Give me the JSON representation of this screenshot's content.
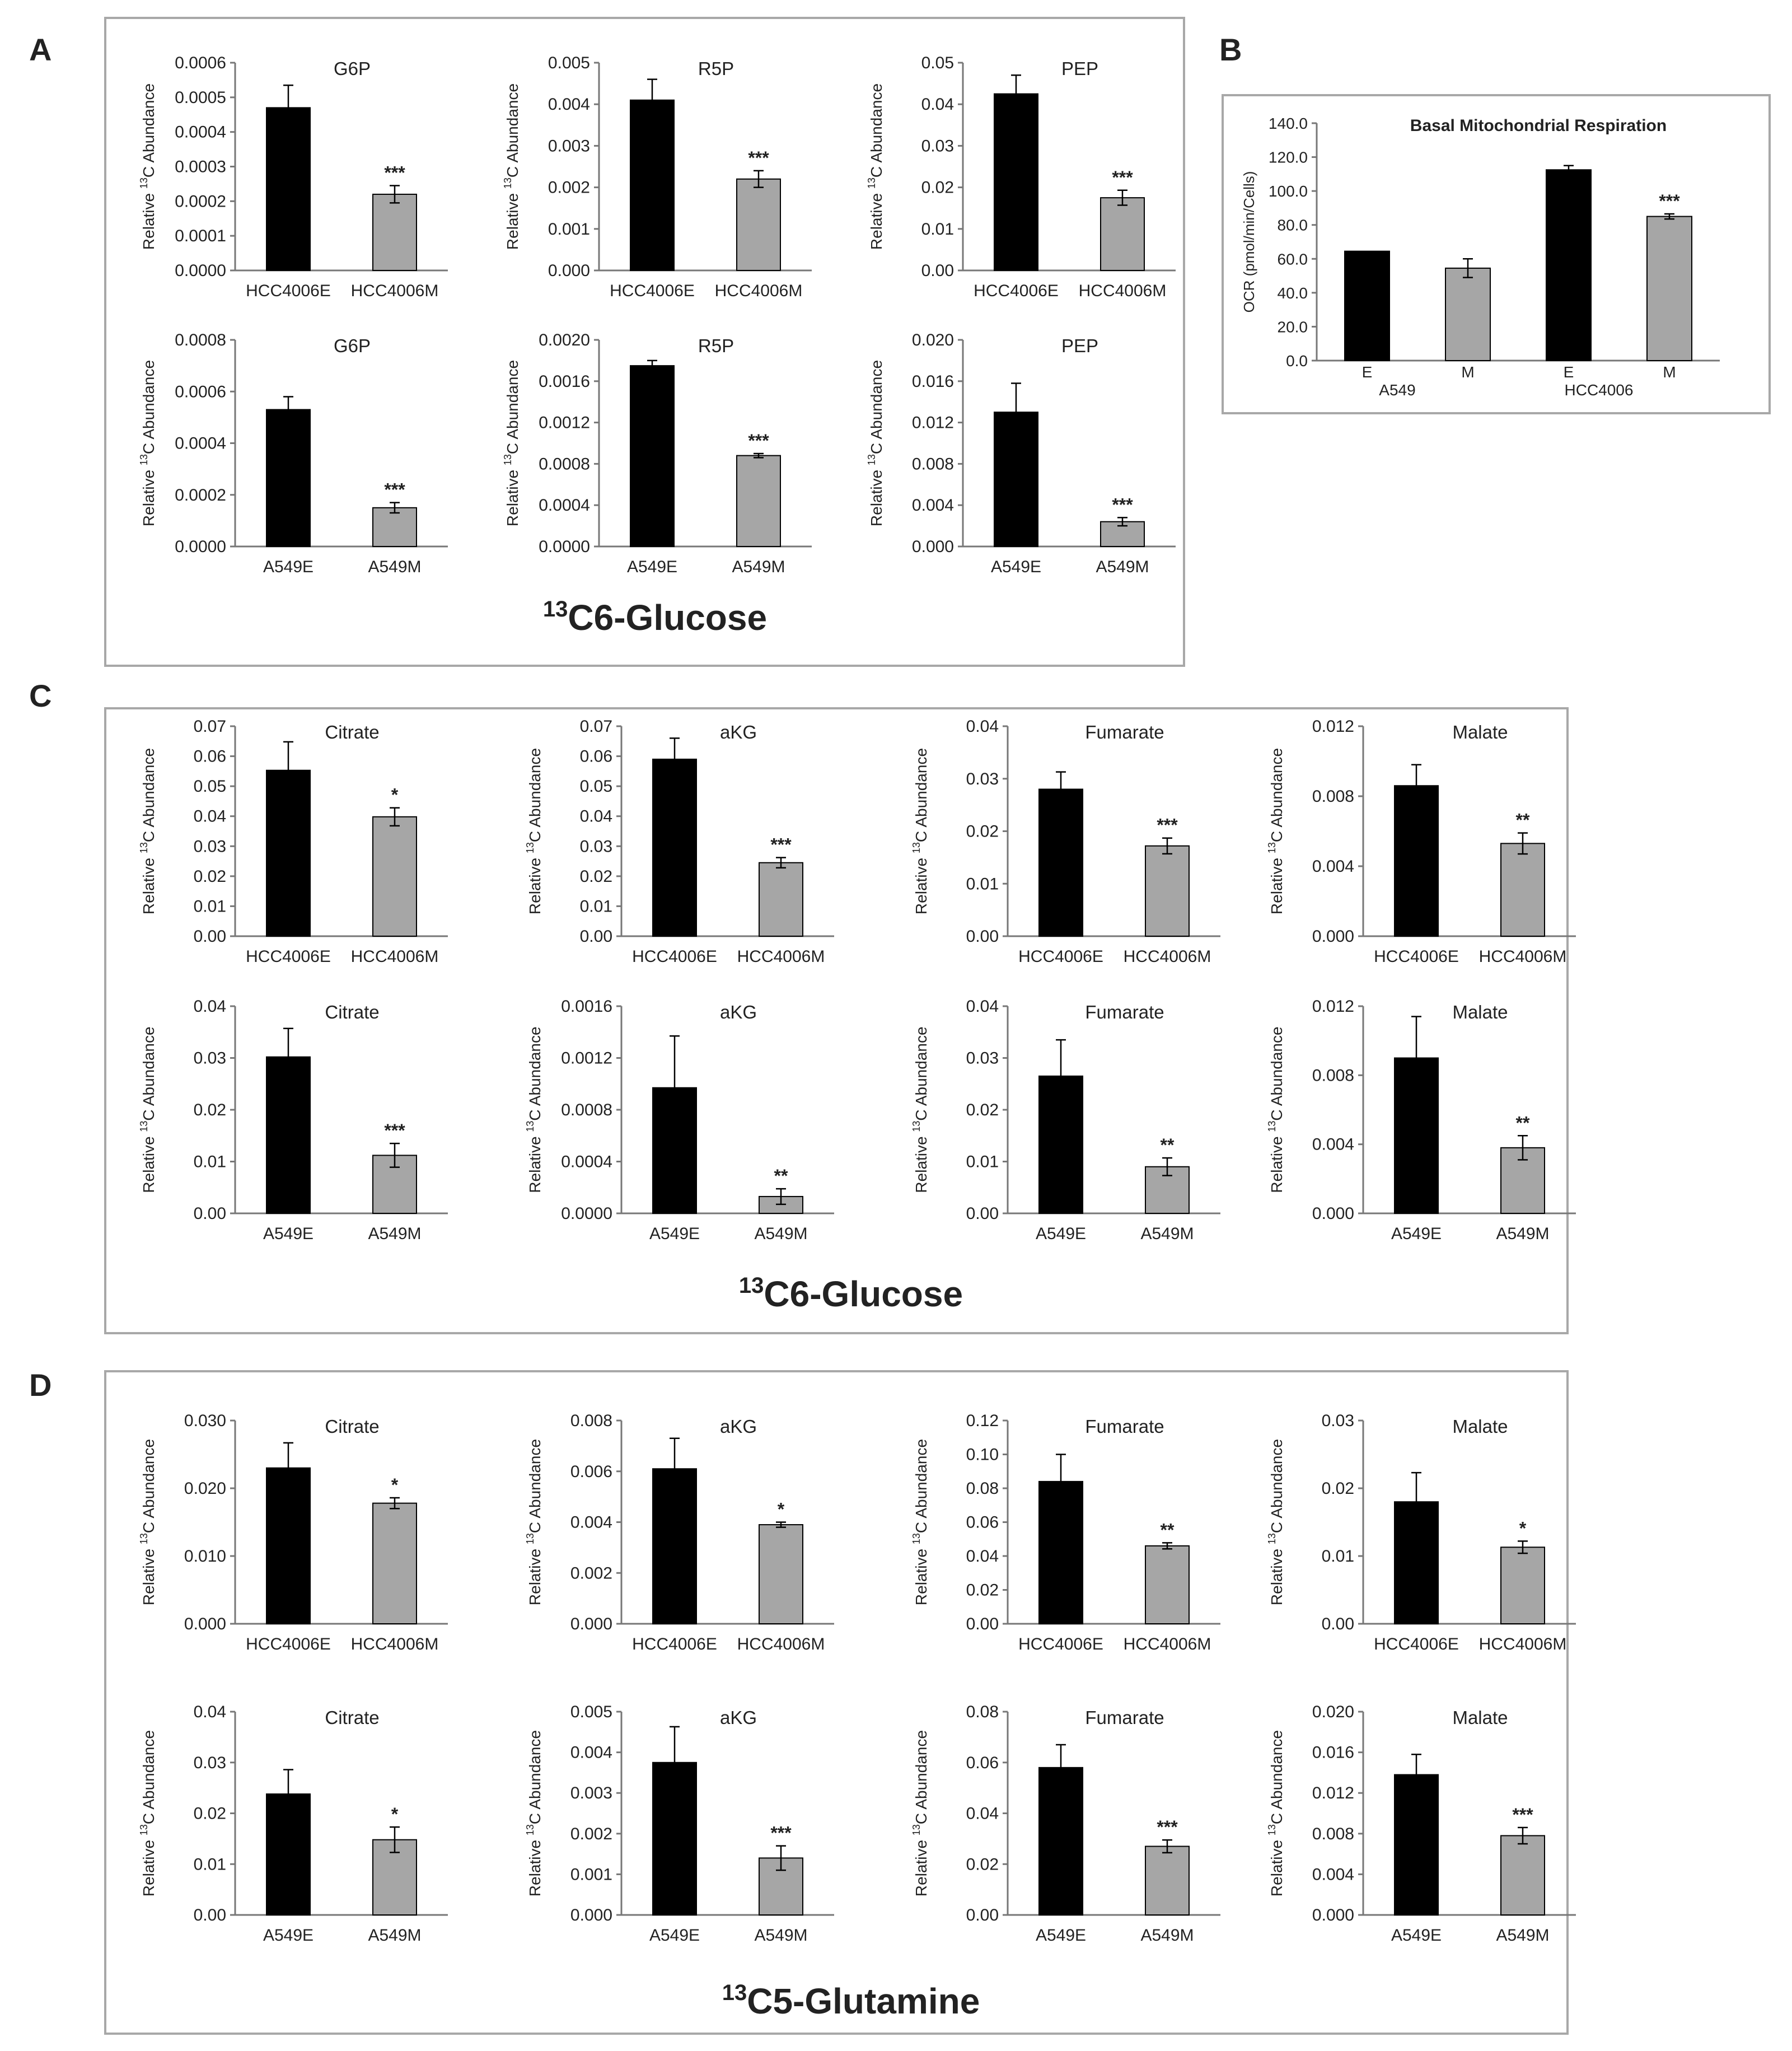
{
  "panels": {
    "a": {
      "label": "A",
      "caption_sup": "13",
      "caption": "C6-Glucose"
    },
    "b": {
      "label": "B"
    },
    "c": {
      "label": "C",
      "caption_sup": "13",
      "caption": "C6-Glucose"
    },
    "d": {
      "label": "D",
      "caption_sup": "13",
      "caption": "C5-Glutamine"
    }
  },
  "ylabel": {
    "prefix": "Relative ",
    "sup": "13",
    "suffix": "C  Abundance"
  },
  "colors": {
    "e_bar": "#000000",
    "m_bar": "#a6a6a6",
    "frame": "#a8a8a8",
    "axis": "#777777"
  },
  "chart_data": [
    {
      "type": "bar",
      "panel": "A",
      "title": "G6P",
      "categories": [
        "HCC4006E",
        "HCC4006M"
      ],
      "values": [
        0.00047,
        0.00022
      ],
      "errors": [
        6.5e-05,
        2.5e-05
      ],
      "sig": [
        "",
        "***"
      ],
      "ticks": [
        "0.0000",
        "0.0001",
        "0.0002",
        "0.0003",
        "0.0004",
        "0.0005",
        "0.0006"
      ],
      "ylim": [
        0,
        0.0006
      ]
    },
    {
      "type": "bar",
      "panel": "A",
      "title": "R5P",
      "categories": [
        "HCC4006E",
        "HCC4006M"
      ],
      "values": [
        0.0041,
        0.0022
      ],
      "errors": [
        0.0005,
        0.0002
      ],
      "sig": [
        "",
        "***"
      ],
      "ticks": [
        "0.000",
        "0.001",
        "0.002",
        "0.003",
        "0.004",
        "0.005"
      ],
      "ylim": [
        0,
        0.005
      ]
    },
    {
      "type": "bar",
      "panel": "A",
      "title": "PEP",
      "categories": [
        "HCC4006E",
        "HCC4006M"
      ],
      "values": [
        0.0425,
        0.0175
      ],
      "errors": [
        0.0045,
        0.0018
      ],
      "sig": [
        "",
        "***"
      ],
      "ticks": [
        "0.00",
        "0.01",
        "0.02",
        "0.03",
        "0.04",
        "0.05"
      ],
      "ylim": [
        0,
        0.05
      ]
    },
    {
      "type": "bar",
      "panel": "A",
      "title": "G6P",
      "categories": [
        "A549E",
        "A549M"
      ],
      "values": [
        0.00053,
        0.00015
      ],
      "errors": [
        5e-05,
        2e-05
      ],
      "sig": [
        "",
        "***"
      ],
      "ticks": [
        "0.0000",
        "0.0002",
        "0.0004",
        "0.0006",
        "0.0008"
      ],
      "ylim": [
        0,
        0.0008
      ]
    },
    {
      "type": "bar",
      "panel": "A",
      "title": "R5P",
      "categories": [
        "A549E",
        "A549M"
      ],
      "values": [
        0.00175,
        0.00088
      ],
      "errors": [
        5e-05,
        2e-05
      ],
      "sig": [
        "",
        "***"
      ],
      "ticks": [
        "0.0000",
        "0.0004",
        "0.0008",
        "0.0012",
        "0.0016",
        "0.0020"
      ],
      "ylim": [
        0,
        0.002
      ]
    },
    {
      "type": "bar",
      "panel": "A",
      "title": "PEP",
      "categories": [
        "A549E",
        "A549M"
      ],
      "values": [
        0.013,
        0.0024
      ],
      "errors": [
        0.0028,
        0.0004
      ],
      "sig": [
        "",
        "***"
      ],
      "ticks": [
        "0.000",
        "0.004",
        "0.008",
        "0.012",
        "0.016",
        "0.020"
      ],
      "ylim": [
        0,
        0.02
      ]
    },
    {
      "type": "bar",
      "panel": "B",
      "title": "Basal Mitochondrial Respiration",
      "ylabel": "OCR (pmol/min/Cells)",
      "categories": [
        "E",
        "M",
        "E",
        "M"
      ],
      "groups": [
        "A549",
        "HCC4006"
      ],
      "values": [
        64.5,
        54.5,
        112.5,
        85
      ],
      "errors": [
        0,
        5.5,
        2.5,
        1.5
      ],
      "sig": [
        "",
        "",
        "",
        "***"
      ],
      "ticks": [
        "0.0",
        "20.0",
        "40.0",
        "60.0",
        "80.0",
        "100.0",
        "120.0",
        "140.0"
      ],
      "ylim": [
        0,
        140
      ]
    },
    {
      "type": "bar",
      "panel": "C",
      "title": "Citrate",
      "categories": [
        "HCC4006E",
        "HCC4006M"
      ],
      "values": [
        0.0553,
        0.0398
      ],
      "errors": [
        0.0095,
        0.003
      ],
      "sig": [
        "",
        "*"
      ],
      "ticks": [
        "0.00",
        "0.01",
        "0.02",
        "0.03",
        "0.04",
        "0.05",
        "0.06",
        "0.07"
      ],
      "ylim": [
        0,
        0.07
      ]
    },
    {
      "type": "bar",
      "panel": "C",
      "title": "aKG",
      "categories": [
        "HCC4006E",
        "HCC4006M"
      ],
      "values": [
        0.059,
        0.0245
      ],
      "errors": [
        0.007,
        0.0017
      ],
      "sig": [
        "",
        "***"
      ],
      "ticks": [
        "0.00",
        "0.01",
        "0.02",
        "0.03",
        "0.04",
        "0.05",
        "0.06",
        "0.07"
      ],
      "ylim": [
        0,
        0.07
      ]
    },
    {
      "type": "bar",
      "panel": "C",
      "title": "Fumarate",
      "categories": [
        "HCC4006E",
        "HCC4006M"
      ],
      "values": [
        0.028,
        0.0172
      ],
      "errors": [
        0.0033,
        0.0015
      ],
      "sig": [
        "",
        "***"
      ],
      "ticks": [
        "0.00",
        "0.01",
        "0.02",
        "0.03",
        "0.04"
      ],
      "ylim": [
        0,
        0.04
      ]
    },
    {
      "type": "bar",
      "panel": "C",
      "title": "Malate",
      "categories": [
        "HCC4006E",
        "HCC4006M"
      ],
      "values": [
        0.0086,
        0.0053
      ],
      "errors": [
        0.0012,
        0.0006
      ],
      "sig": [
        "",
        "**"
      ],
      "ticks": [
        "0.000",
        "0.004",
        "0.008",
        "0.012"
      ],
      "ylim": [
        0,
        0.012
      ]
    },
    {
      "type": "bar",
      "panel": "C",
      "title": "Citrate",
      "categories": [
        "A549E",
        "A549M"
      ],
      "values": [
        0.0302,
        0.0112
      ],
      "errors": [
        0.0055,
        0.0023
      ],
      "sig": [
        "",
        "***"
      ],
      "ticks": [
        "0.00",
        "0.01",
        "0.02",
        "0.03",
        "0.04"
      ],
      "ylim": [
        0,
        0.04
      ]
    },
    {
      "type": "bar",
      "panel": "C",
      "title": "aKG",
      "categories": [
        "A549E",
        "A549M"
      ],
      "values": [
        0.00097,
        0.00013
      ],
      "errors": [
        0.0004,
        6e-05
      ],
      "sig": [
        "",
        "**"
      ],
      "ticks": [
        "0.0000",
        "0.0004",
        "0.0008",
        "0.0012",
        "0.0016"
      ],
      "ylim": [
        0,
        0.0016
      ]
    },
    {
      "type": "bar",
      "panel": "C",
      "title": "Fumarate",
      "categories": [
        "A549E",
        "A549M"
      ],
      "values": [
        0.0265,
        0.009
      ],
      "errors": [
        0.007,
        0.0017
      ],
      "sig": [
        "",
        "**"
      ],
      "ticks": [
        "0.00",
        "0.01",
        "0.02",
        "0.03",
        "0.04"
      ],
      "ylim": [
        0,
        0.04
      ]
    },
    {
      "type": "bar",
      "panel": "C",
      "title": "Malate",
      "categories": [
        "A549E",
        "A549M"
      ],
      "values": [
        0.009,
        0.0038
      ],
      "errors": [
        0.0024,
        0.0007
      ],
      "sig": [
        "",
        "**"
      ],
      "ticks": [
        "0.000",
        "0.004",
        "0.008",
        "0.012"
      ],
      "ylim": [
        0,
        0.012
      ]
    },
    {
      "type": "bar",
      "panel": "D",
      "title": "Citrate",
      "categories": [
        "HCC4006E",
        "HCC4006M"
      ],
      "values": [
        0.023,
        0.0178
      ],
      "errors": [
        0.0037,
        0.0008
      ],
      "sig": [
        "",
        "*"
      ],
      "ticks": [
        "0.000",
        "0.010",
        "0.020",
        "0.030"
      ],
      "ylim": [
        0,
        0.03
      ]
    },
    {
      "type": "bar",
      "panel": "D",
      "title": "aKG",
      "categories": [
        "HCC4006E",
        "HCC4006M"
      ],
      "values": [
        0.0061,
        0.0039
      ],
      "errors": [
        0.0012,
        0.0001
      ],
      "sig": [
        "",
        "*"
      ],
      "ticks": [
        "0.000",
        "0.002",
        "0.004",
        "0.006",
        "0.008"
      ],
      "ylim": [
        0,
        0.008
      ]
    },
    {
      "type": "bar",
      "panel": "D",
      "title": "Fumarate",
      "categories": [
        "HCC4006E",
        "HCC4006M"
      ],
      "values": [
        0.084,
        0.046
      ],
      "errors": [
        0.016,
        0.0018
      ],
      "sig": [
        "",
        "**"
      ],
      "ticks": [
        "0.00",
        "0.02",
        "0.04",
        "0.06",
        "0.08",
        "0.10",
        "0.12"
      ],
      "ylim": [
        0,
        0.12
      ]
    },
    {
      "type": "bar",
      "panel": "D",
      "title": "Malate",
      "categories": [
        "HCC4006E",
        "HCC4006M"
      ],
      "values": [
        0.018,
        0.0113
      ],
      "errors": [
        0.0043,
        0.0009
      ],
      "sig": [
        "",
        "*"
      ],
      "ticks": [
        "0.00",
        "0.01",
        "0.02",
        "0.03"
      ],
      "ylim": [
        0,
        0.03
      ]
    },
    {
      "type": "bar",
      "panel": "D",
      "title": "Citrate",
      "categories": [
        "A549E",
        "A549M"
      ],
      "values": [
        0.0238,
        0.0148
      ],
      "errors": [
        0.0048,
        0.0025
      ],
      "sig": [
        "",
        "*"
      ],
      "ticks": [
        "0.00",
        "0.01",
        "0.02",
        "0.03",
        "0.04"
      ],
      "ylim": [
        0,
        0.04
      ]
    },
    {
      "type": "bar",
      "panel": "D",
      "title": "aKG",
      "categories": [
        "A549E",
        "A549M"
      ],
      "values": [
        0.00375,
        0.0014
      ],
      "errors": [
        0.00088,
        0.0003
      ],
      "sig": [
        "",
        "***"
      ],
      "ticks": [
        "0.000",
        "0.001",
        "0.002",
        "0.003",
        "0.004",
        "0.005"
      ],
      "ylim": [
        0,
        0.005
      ]
    },
    {
      "type": "bar",
      "panel": "D",
      "title": "Fumarate",
      "categories": [
        "A549E",
        "A549M"
      ],
      "values": [
        0.058,
        0.027
      ],
      "errors": [
        0.009,
        0.0025
      ],
      "sig": [
        "",
        "***"
      ],
      "ticks": [
        "0.00",
        "0.02",
        "0.04",
        "0.06",
        "0.08"
      ],
      "ylim": [
        0,
        0.08
      ]
    },
    {
      "type": "bar",
      "panel": "D",
      "title": "Malate",
      "categories": [
        "A549E",
        "A549M"
      ],
      "values": [
        0.0138,
        0.0078
      ],
      "errors": [
        0.002,
        0.0008
      ],
      "sig": [
        "",
        "***"
      ],
      "ticks": [
        "0.000",
        "0.004",
        "0.008",
        "0.012",
        "0.016",
        "0.020"
      ],
      "ylim": [
        0,
        0.02
      ]
    }
  ]
}
